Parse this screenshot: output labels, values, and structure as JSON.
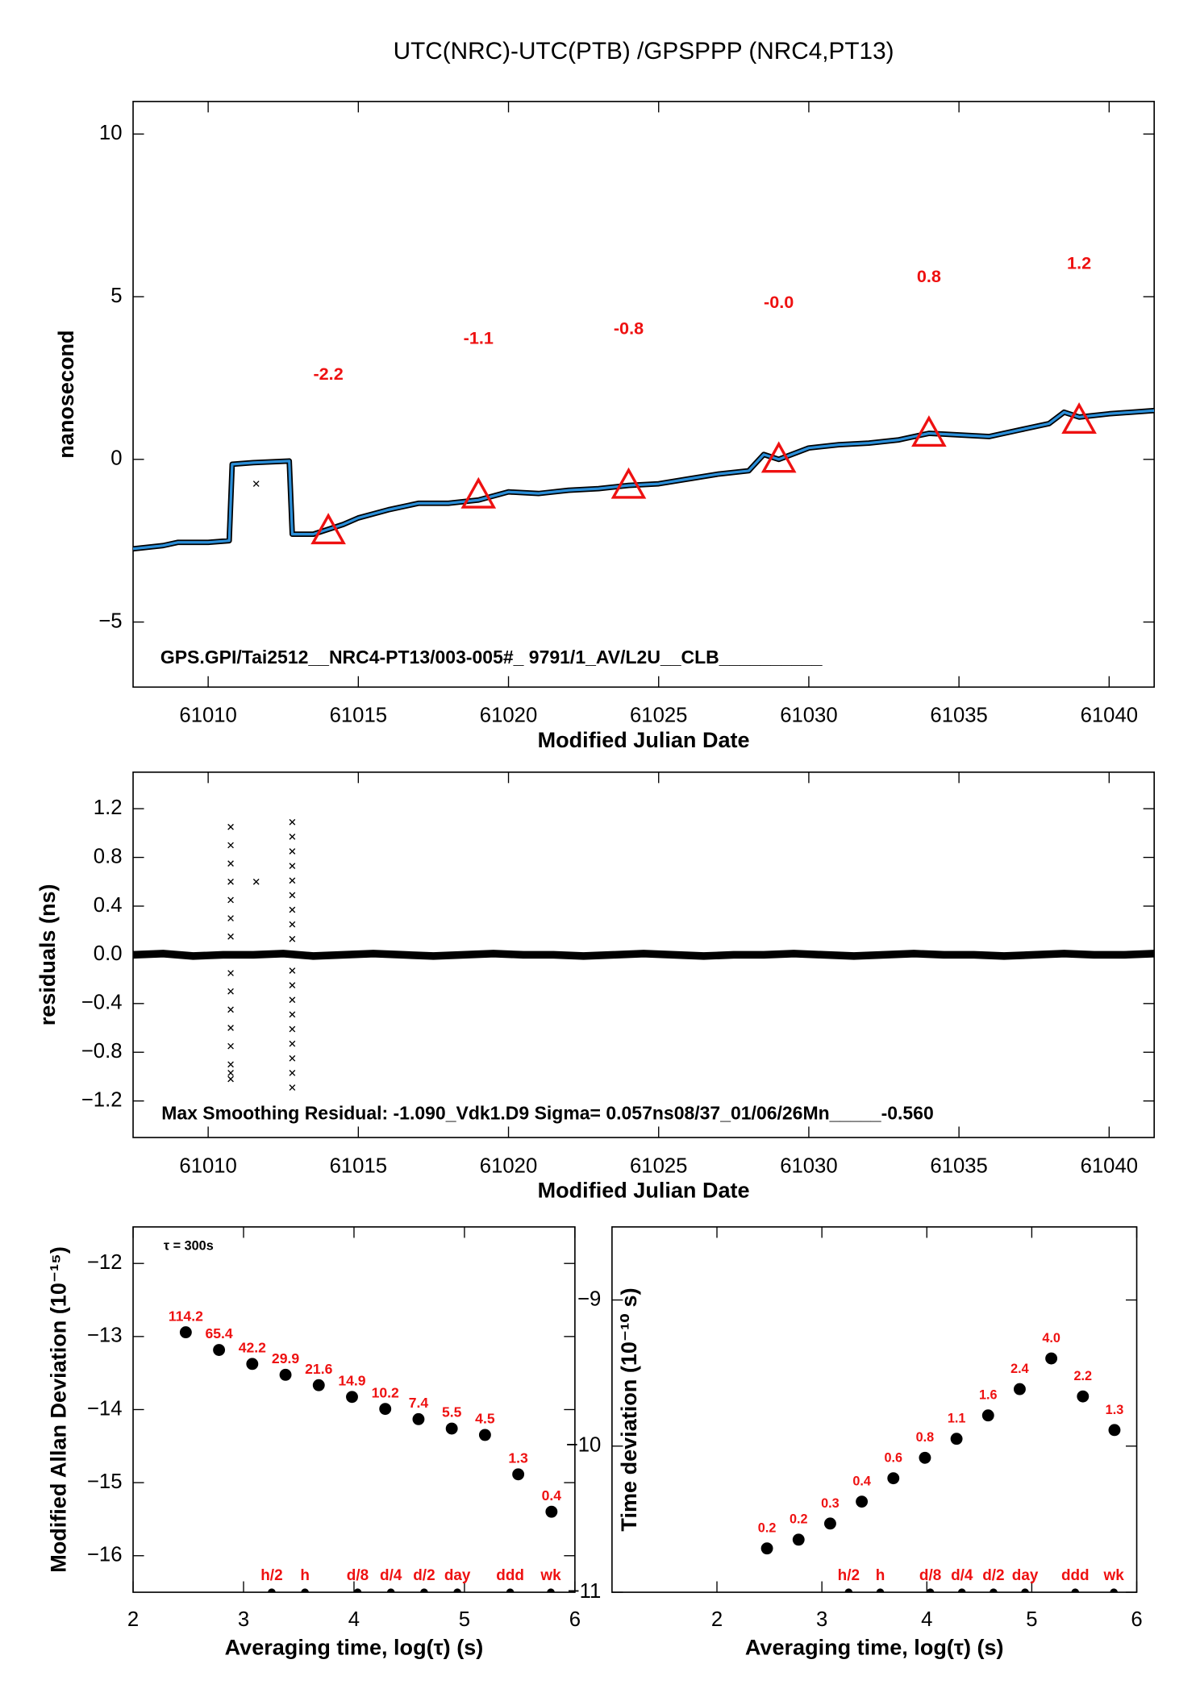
{
  "chart_data": [
    {
      "type": "line",
      "title": "UTC(NRC)-UTC(PTB)  /GPSPPP  (NRC4,PT13)",
      "xlabel": "Modified Julian Date",
      "ylabel": "nanosecond",
      "annotation": "GPS.GPI/Tai2512__NRC4-PT13/003-005#_  9791/1_AV/L2U__CLB__________",
      "xlim": [
        61007.5,
        61041.5
      ],
      "ylim": [
        -7,
        11
      ],
      "xticks": [
        61010,
        61015,
        61020,
        61025,
        61030,
        61035,
        61040
      ],
      "yticks": [
        {
          "value": -5,
          "label": "−5"
        },
        0,
        5,
        10
      ],
      "series": [
        {
          "marker": "line",
          "color": "#2b8fd9",
          "outline": "#000000",
          "x": [
            61007.5,
            61008.5,
            61009,
            61010,
            61010.7,
            61010.8,
            61011.5,
            61012.7,
            61012.8,
            61013.5,
            61014.5,
            61015,
            61016,
            61017,
            61018,
            61019,
            61020,
            61021,
            61022,
            61023,
            61024,
            61025,
            61026,
            61027,
            61028,
            61028.5,
            61029,
            61030,
            61031,
            61032,
            61033,
            61034,
            61035,
            61036,
            61037,
            61038,
            61038.5,
            61039,
            61040,
            61041.5
          ],
          "values": [
            -2.75,
            -2.65,
            -2.55,
            -2.55,
            -2.5,
            -0.15,
            -0.1,
            -0.05,
            -2.3,
            -2.3,
            -2.0,
            -1.8,
            -1.55,
            -1.35,
            -1.35,
            -1.25,
            -1.0,
            -1.05,
            -0.95,
            -0.9,
            -0.8,
            -0.75,
            -0.6,
            -0.45,
            -0.35,
            0.15,
            0.0,
            0.35,
            0.45,
            0.5,
            0.6,
            0.8,
            0.75,
            0.7,
            0.9,
            1.1,
            1.45,
            1.3,
            1.4,
            1.5
          ]
        },
        {
          "marker": "triangle",
          "color": "#ee1111",
          "x": [
            61014,
            61019,
            61024,
            61029,
            61034,
            61039
          ],
          "values": [
            -2.2,
            -1.1,
            -0.8,
            0,
            0.8,
            1.2
          ],
          "value_labels": [
            "-2.2",
            "-1.1",
            "-0.8",
            "-0.0",
            "0.8",
            "1.2"
          ]
        },
        {
          "marker": "x",
          "color": "#000000",
          "x": [
            61011.6
          ],
          "values": [
            -0.75
          ]
        }
      ]
    },
    {
      "type": "scatter",
      "xlabel": "Modified Julian Date",
      "ylabel": "residuals (ns)",
      "annotation": "Max Smoothing Residual: -1.090_Vdk1.D9  Sigma= 0.057ns08/37_01/06/26Mn_____-0.560",
      "xlim": [
        61007.5,
        61041.5
      ],
      "ylim": [
        -1.5,
        1.5
      ],
      "xticks": [
        61010,
        61015,
        61020,
        61025,
        61030,
        61035,
        61040
      ],
      "yticks": [
        {
          "value": -1.2,
          "label": "−1.2"
        },
        {
          "value": -0.8,
          "label": "−0.8"
        },
        {
          "value": -0.4,
          "label": "−0.4"
        },
        {
          "value": 0,
          "label": "0.0"
        },
        0.4,
        0.8,
        1.2
      ],
      "series": [
        {
          "marker": "line",
          "color": "#000000",
          "x": [
            61007.5,
            61008.5,
            61009.5,
            61010.5,
            61011.5,
            61012.5,
            61013.5,
            61014.5,
            61015.5,
            61016.5,
            61017.5,
            61018.5,
            61019.5,
            61020.5,
            61021.5,
            61022.5,
            61023.5,
            61024.5,
            61025.5,
            61026.5,
            61027.5,
            61028.5,
            61029.5,
            61030.5,
            61031.5,
            61032.5,
            61033.5,
            61034.5,
            61035.5,
            61036.5,
            61037.5,
            61038.5,
            61039.5,
            61040.5,
            61041.5
          ],
          "values": [
            0.0,
            0.01,
            -0.01,
            0.0,
            0.0,
            0.01,
            -0.01,
            0.0,
            0.01,
            0.0,
            -0.01,
            0.0,
            0.01,
            0.0,
            0.0,
            -0.01,
            0.0,
            0.01,
            0.0,
            -0.01,
            0.0,
            0.0,
            0.01,
            0.0,
            -0.01,
            0.0,
            0.01,
            0.0,
            0.0,
            -0.01,
            0.0,
            0.01,
            0.0,
            0.0,
            0.01
          ]
        },
        {
          "marker": "x",
          "color": "#000000",
          "x": [
            61010.75,
            61010.75,
            61010.75,
            61010.75,
            61010.75,
            61010.75,
            61010.75,
            61010.75,
            61010.75,
            61010.75,
            61010.75,
            61010.75,
            61010.75,
            61010.75,
            61010.75
          ],
          "values": [
            1.05,
            0.9,
            0.75,
            0.6,
            0.45,
            0.3,
            0.15,
            -0.15,
            -0.3,
            -0.45,
            -0.6,
            -0.75,
            -0.9,
            -0.97,
            -1.02
          ]
        },
        {
          "marker": "x",
          "color": "#000000",
          "x": [
            61012.8,
            61012.8,
            61012.8,
            61012.8,
            61012.8,
            61012.8,
            61012.8,
            61012.8,
            61012.8,
            61012.8,
            61012.8,
            61012.8,
            61012.8,
            61012.8,
            61012.8,
            61012.8,
            61012.8,
            61012.8
          ],
          "values": [
            1.09,
            0.97,
            0.85,
            0.73,
            0.61,
            0.49,
            0.37,
            0.25,
            0.13,
            -0.13,
            -0.25,
            -0.37,
            -0.49,
            -0.61,
            -0.73,
            -0.85,
            -0.97,
            -1.09
          ]
        },
        {
          "marker": "x",
          "color": "#000000",
          "x": [
            61011.6
          ],
          "values": [
            0.6
          ]
        }
      ]
    },
    {
      "type": "scatter",
      "xlabel": "Averaging time, log(τ) (s)",
      "ylabel": "Modified Allan Deviation (10⁻¹⁵)",
      "annotation": "τ = 300s",
      "xlim": [
        2,
        6
      ],
      "ylim": [
        -16.5,
        -11.5
      ],
      "xticks": [
        2,
        3,
        4,
        5,
        6
      ],
      "yticks": [
        {
          "value": -16,
          "label": "−16"
        },
        {
          "value": -15,
          "label": "−15"
        },
        {
          "value": -14,
          "label": "−14"
        },
        {
          "value": -13,
          "label": "−13"
        },
        {
          "value": -12,
          "label": "−12"
        }
      ],
      "series": [
        {
          "marker": "dot",
          "color": "#000000",
          "x": [
            2.477,
            2.778,
            3.079,
            3.38,
            3.681,
            3.982,
            4.283,
            4.584,
            4.885,
            5.186,
            5.487,
            5.788
          ],
          "values": [
            -12.942,
            -13.184,
            -13.375,
            -13.524,
            -13.666,
            -13.827,
            -13.991,
            -14.131,
            -14.26,
            -14.347,
            -14.886,
            -15.398
          ],
          "labels": [
            "114.2",
            "65.4",
            "42.2",
            "29.9",
            "21.6",
            "14.9",
            "10.2",
            "7.4",
            "5.5",
            "4.5",
            "1.3",
            "0.4"
          ]
        }
      ],
      "markers": {
        "x": [
          3.255,
          3.556,
          4.033,
          4.334,
          4.635,
          4.936,
          5.414,
          5.782
        ],
        "labels": [
          "h/2",
          "h",
          "d/8",
          "d/4",
          "d/2",
          "day",
          "ddd",
          "wk"
        ]
      }
    },
    {
      "type": "scatter",
      "xlabel": "Averaging time, log(τ) (s)",
      "ylabel": "Time deviation (10⁻¹⁰ s)",
      "xlim": [
        1,
        6
      ],
      "ylim": [
        -11,
        -8.5
      ],
      "xticks": [
        2,
        3,
        4,
        5,
        6
      ],
      "yticks": [
        {
          "value": -11,
          "label": "−11"
        },
        {
          "value": -10,
          "label": "−10"
        },
        {
          "value": -9,
          "label": "−9"
        }
      ],
      "series": [
        {
          "marker": "dot",
          "color": "#000000",
          "x": [
            2.477,
            2.778,
            3.079,
            3.38,
            3.681,
            3.982,
            4.283,
            4.584,
            4.885,
            5.186,
            5.487,
            5.788
          ],
          "values": [
            -10.7,
            -10.64,
            -10.53,
            -10.38,
            -10.22,
            -10.08,
            -9.95,
            -9.79,
            -9.61,
            -9.4,
            -9.66,
            -9.89
          ],
          "labels": [
            "0.2",
            "0.2",
            "0.3",
            "0.4",
            "0.6",
            "0.8",
            "1.1",
            "1.6",
            "2.4",
            "4.0",
            "2.2",
            "1.3"
          ]
        }
      ],
      "markers": {
        "x": [
          3.255,
          3.556,
          4.033,
          4.334,
          4.635,
          4.936,
          5.414,
          5.782
        ],
        "labels": [
          "h/2",
          "h",
          "d/8",
          "d/4",
          "d/2",
          "day",
          "ddd",
          "wk"
        ]
      }
    }
  ]
}
